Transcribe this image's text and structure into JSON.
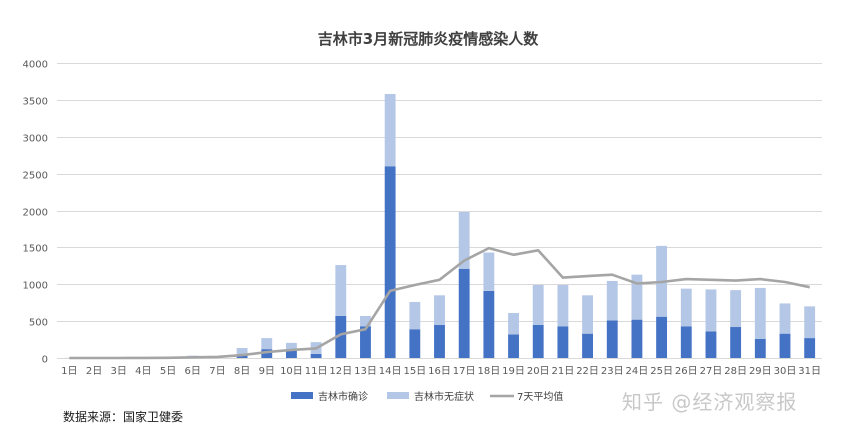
{
  "chart_data": {
    "type": "bar",
    "title": "吉林市3月新冠肺炎疫情感染人数",
    "categories": [
      "1日",
      "2日",
      "3日",
      "4日",
      "5日",
      "6日",
      "7日",
      "8日",
      "9日",
      "10日",
      "11日",
      "12日",
      "13日",
      "14日",
      "15日",
      "16日",
      "17日",
      "18日",
      "19日",
      "20日",
      "21日",
      "22日",
      "23日",
      "24日",
      "25日",
      "26日",
      "27日",
      "28日",
      "29日",
      "30日",
      "31日"
    ],
    "stacked": true,
    "ylim": [
      0,
      4000
    ],
    "yticks": [
      0,
      500,
      1000,
      1500,
      2000,
      2500,
      3000,
      3500,
      4000
    ],
    "grid": true,
    "legend_position": "bottom",
    "series": [
      {
        "name": "吉林市确诊",
        "type": "bar",
        "color": "#4472c4",
        "values": [
          0,
          0,
          0,
          0,
          0,
          2,
          2,
          45,
          120,
          95,
          55,
          570,
          430,
          2600,
          390,
          450,
          1210,
          910,
          320,
          450,
          430,
          330,
          510,
          520,
          560,
          430,
          360,
          420,
          260,
          330,
          270
        ]
      },
      {
        "name": "吉林市无症状",
        "type": "bar",
        "color": "#b4c7e7",
        "values": [
          2,
          2,
          2,
          5,
          5,
          30,
          25,
          90,
          150,
          110,
          160,
          690,
          140,
          980,
          370,
          400,
          770,
          520,
          290,
          540,
          560,
          520,
          535,
          610,
          960,
          510,
          570,
          500,
          690,
          410,
          430
        ]
      },
      {
        "name": "7天平均值",
        "type": "line",
        "color": "#a5a5a5",
        "values": [
          0,
          0,
          0,
          2,
          3,
          10,
          15,
          40,
          80,
          110,
          130,
          320,
          390,
          910,
          990,
          1060,
          1320,
          1490,
          1400,
          1460,
          1090,
          1110,
          1130,
          1010,
          1030,
          1070,
          1060,
          1050,
          1070,
          1030,
          960
        ]
      }
    ]
  },
  "source_note": "数据来源：国家卫健委",
  "watermark": "知乎 @经济观察报"
}
